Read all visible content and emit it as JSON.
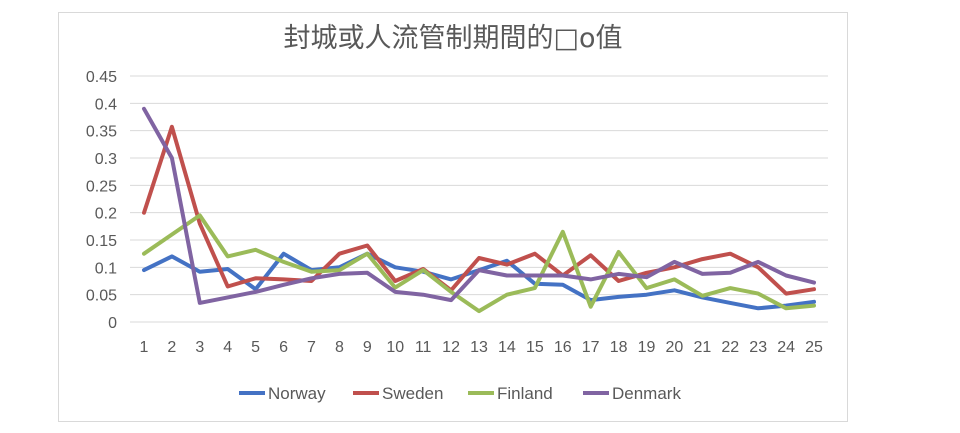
{
  "chart_data": {
    "type": "line",
    "title": "封城或人流管制期間的□o值",
    "xlabel": "",
    "ylabel": "",
    "x": [
      1,
      2,
      3,
      4,
      5,
      6,
      7,
      8,
      9,
      10,
      11,
      12,
      13,
      14,
      15,
      16,
      17,
      18,
      19,
      20,
      21,
      22,
      23,
      24,
      25
    ],
    "ylim": [
      0,
      0.45
    ],
    "y_ticks": [
      "0",
      "0.05",
      "0.1",
      "0.15",
      "0.2",
      "0.25",
      "0.3",
      "0.35",
      "0.4",
      "0.45"
    ],
    "grid": true,
    "legend_position": "bottom",
    "series": [
      {
        "name": "Norway",
        "color": "#4472c4",
        "values": [
          0.095,
          0.12,
          0.092,
          0.097,
          0.06,
          0.125,
          0.095,
          0.1,
          0.125,
          0.1,
          0.092,
          0.078,
          0.095,
          0.112,
          0.07,
          0.068,
          0.04,
          0.046,
          0.05,
          0.058,
          0.045,
          0.035,
          0.025,
          0.03,
          0.037
        ]
      },
      {
        "name": "Sweden",
        "color": "#c0504d",
        "values": [
          0.2,
          0.357,
          0.18,
          0.065,
          0.08,
          0.078,
          0.075,
          0.125,
          0.14,
          0.075,
          0.097,
          0.058,
          0.117,
          0.105,
          0.125,
          0.085,
          0.122,
          0.075,
          0.09,
          0.1,
          0.115,
          0.125,
          0.1,
          0.052,
          0.06
        ]
      },
      {
        "name": "Finland",
        "color": "#9bbb59",
        "values": [
          0.125,
          0.16,
          0.195,
          0.12,
          0.132,
          0.11,
          0.092,
          0.095,
          0.125,
          0.063,
          0.095,
          0.055,
          0.02,
          0.05,
          0.062,
          0.165,
          0.028,
          0.128,
          0.062,
          0.078,
          0.048,
          0.062,
          0.052,
          0.025,
          0.03
        ]
      },
      {
        "name": "Denmark",
        "color": "#8064a2",
        "values": [
          0.39,
          0.3,
          0.035,
          0.045,
          0.055,
          0.068,
          0.08,
          0.088,
          0.09,
          0.055,
          0.05,
          0.04,
          0.095,
          0.085,
          0.085,
          0.085,
          0.078,
          0.088,
          0.082,
          0.11,
          0.088,
          0.09,
          0.11,
          0.085,
          0.072
        ]
      }
    ]
  }
}
